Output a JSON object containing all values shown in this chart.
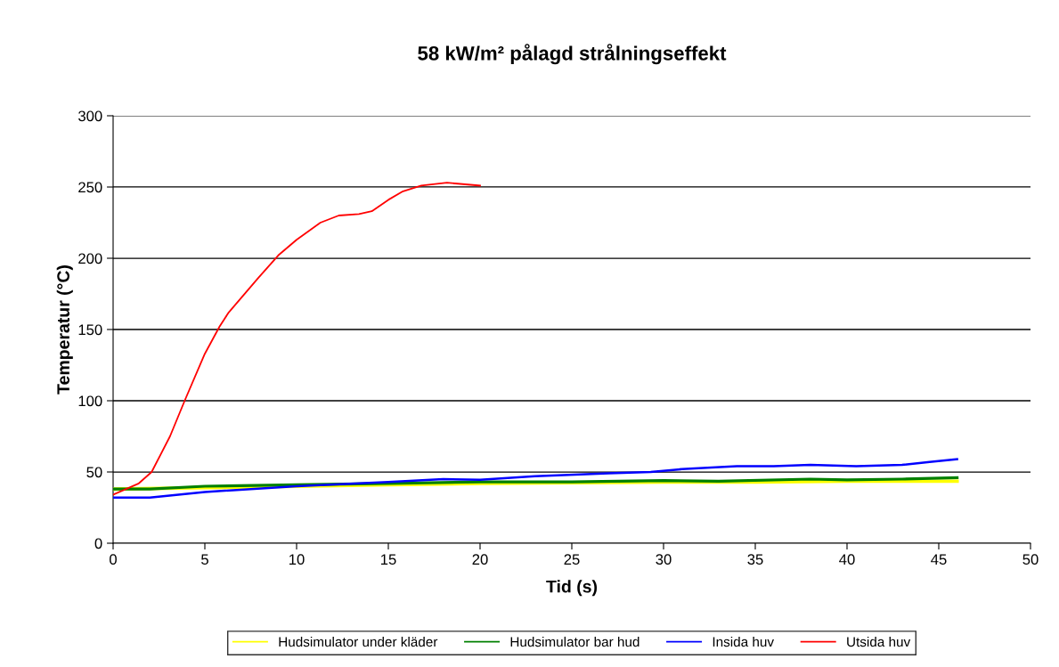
{
  "chart_data": {
    "type": "line",
    "title": "58 kW/m² pålagd strålningseffekt",
    "xlabel": "Tid (s)",
    "ylabel": "Temperatur (°C)",
    "xlim": [
      0,
      50
    ],
    "xticks": [
      0,
      5,
      10,
      15,
      20,
      25,
      30,
      35,
      40,
      45,
      50
    ],
    "ylim": [
      0,
      300
    ],
    "yticks": [
      0,
      50,
      100,
      150,
      200,
      250,
      300
    ],
    "grid": "y",
    "legend": "bottom",
    "marker": "none",
    "line_style": "solid",
    "series": [
      {
        "name": "Hudsimulator under kläder",
        "color": "#ffff00",
        "x": [
          0,
          5,
          10,
          15,
          20,
          25,
          30,
          35,
          40,
          46
        ],
        "values": [
          38,
          39,
          40,
          41,
          42,
          42.5,
          43,
          43,
          43.5,
          43.5
        ]
      },
      {
        "name": "Hudsimulator bar hud",
        "color": "#008000",
        "x": [
          0,
          2,
          5,
          10,
          15,
          20,
          25,
          30,
          33,
          38,
          40,
          43,
          46
        ],
        "values": [
          38,
          38,
          40,
          41,
          42,
          43,
          43,
          44,
          43.5,
          45,
          44.5,
          45,
          46
        ]
      },
      {
        "name": "Insida huv",
        "color": "#0000ff",
        "x": [
          0,
          2,
          5,
          10,
          15,
          18,
          20,
          23,
          27,
          29.3,
          31,
          34,
          36,
          38,
          40.5,
          43,
          44.5,
          46
        ],
        "values": [
          32,
          32,
          36,
          40,
          43,
          45,
          44.5,
          47,
          49,
          50,
          52,
          54,
          54,
          55,
          54,
          55,
          57,
          59
        ]
      },
      {
        "name": "Utsida huv",
        "color": "#ff0000",
        "x": [
          0,
          1.4,
          2.1,
          3.1,
          3.9,
          5,
          5.8,
          6.3,
          7.9,
          9,
          10,
          11.3,
          12.3,
          13.4,
          14.1,
          15,
          15.8,
          16.8,
          18.2,
          20
        ],
        "values": [
          34,
          42,
          50,
          75,
          100,
          133,
          152,
          162,
          186,
          202,
          213,
          225,
          230,
          231,
          233,
          241,
          247,
          251,
          253,
          251
        ]
      }
    ]
  }
}
